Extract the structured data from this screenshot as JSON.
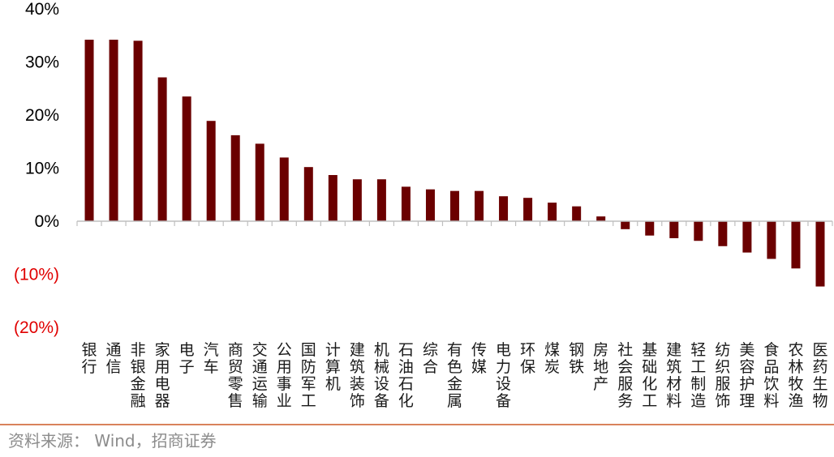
{
  "colors": {
    "bar": "#6b0000",
    "negative_label": "#e00000",
    "positive_label": "#000000",
    "axis": "#bfbfbf",
    "source_rule": "#d9825b",
    "source_text": "#8c8c8c"
  },
  "chart_data": {
    "type": "bar",
    "categories": [
      "银行",
      "通信",
      "非银金融",
      "家用电器",
      "电子",
      "汽车",
      "商贸零售",
      "交通运输",
      "公用事业",
      "国防军工",
      "计算机",
      "建筑装饰",
      "机械设备",
      "石油石化",
      "综合",
      "有色金属",
      "传媒",
      "电力设备",
      "环保",
      "煤炭",
      "钢铁",
      "房地产",
      "社会服务",
      "基础化工",
      "建筑材料",
      "轻工制造",
      "纺织服饰",
      "美容护理",
      "食品饮料",
      "农林牧渔",
      "医药生物"
    ],
    "values": [
      34.2,
      34.2,
      34.0,
      27.1,
      23.5,
      18.9,
      16.2,
      14.6,
      12.0,
      10.2,
      8.7,
      7.9,
      7.9,
      6.5,
      6.0,
      5.7,
      5.7,
      4.7,
      4.4,
      3.5,
      2.8,
      0.9,
      -1.5,
      -2.7,
      -3.2,
      -3.7,
      -4.7,
      -5.9,
      -7.1,
      -8.9,
      -12.3
    ],
    "ylim": [
      -20,
      40
    ],
    "yticks": [
      40,
      30,
      20,
      10,
      0,
      -10,
      -20
    ],
    "ytick_labels": [
      "40%",
      "30%",
      "20%",
      "10%",
      "0%",
      "(10%)",
      "(20%)"
    ],
    "title": "",
    "xlabel": "",
    "ylabel": "",
    "grid": false,
    "legend": "none"
  },
  "source": {
    "text": "资料来源： Wind，招商证券"
  }
}
